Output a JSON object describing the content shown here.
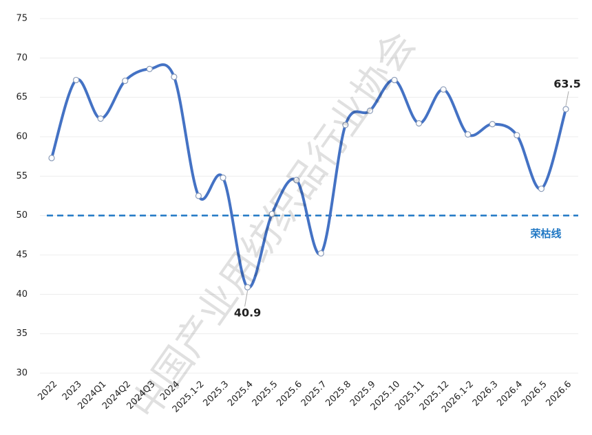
{
  "chart_data": {
    "type": "line",
    "categories": [
      "2022",
      "2023",
      "2024Q1",
      "2024Q2",
      "2024Q3",
      "2024",
      "2025.1-2",
      "2025.3",
      "2025.4",
      "2025.5",
      "2025.6",
      "2025.7",
      "2025.8",
      "2025.9",
      "2025.10",
      "2025.11",
      "2025.12",
      "2026.1-2",
      "2026.3",
      "2026.4",
      "2026.5",
      "2026.6"
    ],
    "series": [
      {
        "color": "#4472c4",
        "values": [
          57.3,
          67.2,
          62.3,
          67.1,
          68.6,
          67.6,
          52.5,
          54.8,
          40.9,
          50.2,
          54.5,
          45.2,
          61.5,
          63.3,
          67.2,
          61.7,
          66.0,
          60.3,
          61.6,
          60.2,
          53.4,
          63.5
        ]
      }
    ],
    "labeled_points": [
      8,
      21
    ],
    "ylim": [
      30,
      75
    ],
    "yticks": [
      30,
      35,
      40,
      45,
      50,
      55,
      60,
      65,
      70,
      75
    ],
    "grid": true,
    "reference_line": {
      "value": 50,
      "label": "荣枯线",
      "color": "#1f77c4"
    },
    "watermark": "中国产业用纺织品行业协会"
  }
}
